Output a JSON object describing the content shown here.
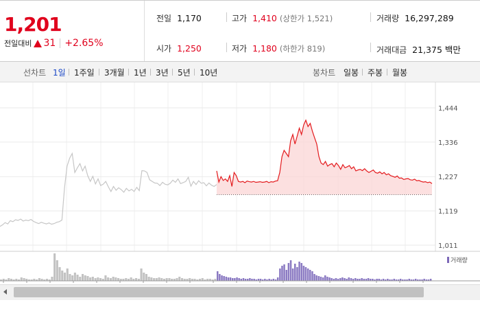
{
  "summary": {
    "price": "1,201",
    "change_label": "전일대비",
    "change_abs": "31",
    "change_pct": "+2.65%",
    "prev_close_label": "전일",
    "prev_close": "1,170",
    "open_label": "시가",
    "open": "1,250",
    "high_label": "고가",
    "high": "1,410",
    "upper_limit": "(상한가 1,521)",
    "low_label": "저가",
    "low": "1,180",
    "lower_limit": "(하한가 819)",
    "volume_label": "거래량",
    "volume": "16,297,289",
    "amount_label": "거래대금",
    "amount": "21,375 백만"
  },
  "toolbar": {
    "line_chart_label": "선차트",
    "periods": [
      "1일",
      "1주일",
      "3개월",
      "1년",
      "3년",
      "5년",
      "10년"
    ],
    "active_period": "1일",
    "candle_label": "봉차트",
    "candles": [
      "일봉",
      "주봉",
      "월봉"
    ]
  },
  "chart_data": {
    "type": "line",
    "y_ticks": [
      "1,444",
      "1,336",
      "1,227",
      "1,119",
      "1,011"
    ],
    "ylim": [
      1011,
      1444
    ],
    "prev_close": 1170,
    "legend": "거래량",
    "series": [
      {
        "values": [
          1070,
          1075,
          1082,
          1078,
          1088,
          1085,
          1091,
          1089,
          1093,
          1087,
          1090,
          1088,
          1092,
          1086,
          1082,
          1079,
          1083,
          1080,
          1078,
          1081,
          1077,
          1079,
          1083,
          1085,
          1090,
          1190,
          1260,
          1285,
          1300,
          1240,
          1255,
          1268,
          1245,
          1260,
          1230,
          1212,
          1228,
          1204,
          1220,
          1199,
          1203,
          1212,
          1195,
          1180,
          1196,
          1184,
          1192,
          1186,
          1178,
          1190,
          1182,
          1187,
          1180,
          1193,
          1183,
          1246,
          1245,
          1240,
          1217,
          1212,
          1207,
          1206,
          1199,
          1209,
          1203,
          1201,
          1206,
          1216,
          1209,
          1220,
          1205,
          1208,
          1212,
          1225,
          1197,
          1212,
          1202,
          1214,
          1206,
          1208,
          1198,
          1207,
          1200,
          1196,
          1202
        ]
      },
      {
        "values": [
          1245,
          1210,
          1227,
          1215,
          1220,
          1212,
          1230,
          1196,
          1240,
          1230,
          1212,
          1210,
          1212,
          1208,
          1213,
          1211,
          1210,
          1212,
          1209,
          1210,
          1211,
          1209,
          1210,
          1212,
          1208,
          1211,
          1210,
          1213,
          1214,
          1240,
          1290,
          1310,
          1300,
          1290,
          1340,
          1360,
          1330,
          1355,
          1380,
          1360,
          1390,
          1405,
          1385,
          1395,
          1370,
          1350,
          1330,
          1290,
          1270,
          1265,
          1275,
          1260,
          1265,
          1268,
          1258,
          1270,
          1262,
          1250,
          1265,
          1255,
          1258,
          1262,
          1252,
          1258,
          1245,
          1248,
          1250,
          1246,
          1252,
          1245,
          1240,
          1244,
          1248,
          1240,
          1238,
          1242,
          1236,
          1240,
          1233,
          1236,
          1230,
          1228,
          1225,
          1229,
          1222,
          1223,
          1218,
          1220,
          1221,
          1217,
          1216,
          1219,
          1214,
          1215,
          1212,
          1210,
          1211,
          1208,
          1210,
          1205
        ]
      }
    ],
    "volume": {
      "gray": [
        2,
        3,
        2,
        4,
        3,
        2,
        3,
        2,
        5,
        4,
        3,
        2,
        2,
        3,
        2,
        4,
        3,
        2,
        3,
        2,
        6,
        40,
        30,
        20,
        15,
        12,
        18,
        10,
        8,
        12,
        9,
        6,
        10,
        8,
        7,
        5,
        6,
        4,
        5,
        4,
        3,
        8,
        5,
        4,
        6,
        5,
        4,
        3,
        3,
        4,
        3,
        5,
        3,
        4,
        3,
        18,
        12,
        10,
        6,
        5,
        4,
        4,
        5,
        4,
        3,
        4,
        4,
        3,
        3,
        4,
        6,
        4,
        3,
        3,
        4,
        3,
        3,
        2,
        3,
        4,
        2,
        3,
        3,
        2,
        3
      ],
      "purple": [
        14,
        10,
        8,
        7,
        6,
        5,
        5,
        4,
        4,
        5,
        4,
        3,
        4,
        3,
        3,
        4,
        3,
        3,
        2,
        3,
        3,
        2,
        3,
        2,
        3,
        2,
        3,
        2,
        5,
        18,
        22,
        24,
        16,
        26,
        30,
        18,
        25,
        20,
        28,
        26,
        22,
        20,
        18,
        16,
        14,
        10,
        8,
        7,
        6,
        5,
        8,
        6,
        5,
        4,
        3,
        4,
        3,
        4,
        5,
        4,
        3,
        5,
        4,
        3,
        4,
        3,
        3,
        4,
        3,
        3,
        4,
        3,
        3,
        2,
        3,
        3,
        2,
        3,
        2,
        3,
        2,
        2,
        3,
        2,
        2,
        3,
        2,
        2,
        2,
        3,
        2,
        2,
        3,
        2,
        2,
        2,
        3,
        2,
        2,
        3
      ]
    }
  }
}
